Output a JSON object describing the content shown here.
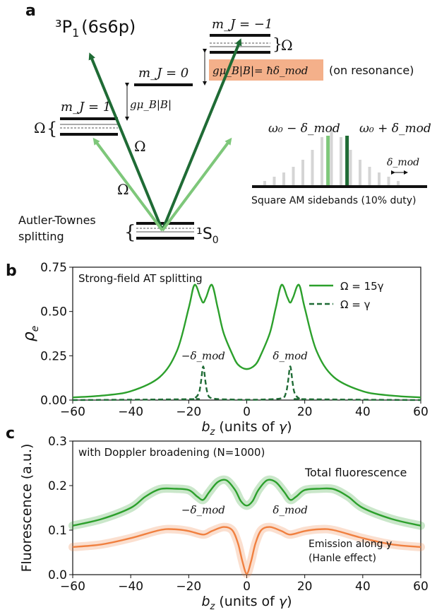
{
  "panel_labels": {
    "a": "a",
    "b": "b",
    "c": "c"
  },
  "diagram": {
    "state_3p1": "³P",
    "state_3p1_sub": "1",
    "state_3p1_config": "(6s6p)",
    "state_1s0": "¹S",
    "state_1s0_sub": "0",
    "mj_plus1": "m_J = 1",
    "mj_0": "m_J = 0",
    "mj_minus1": "m_J = −1",
    "zeeman_label": "gμ_B|B|",
    "omega": "Ω",
    "resonance_eq": "gμ_B|B|= ħδ_mod",
    "resonance_note": "(on resonance)",
    "autler_townes_line1": "Autler-Townes",
    "autler_townes_line2": "splitting",
    "sideband_left": "ω₀ − δ_mod",
    "sideband_right": "ω₀ + δ_mod",
    "sideband_spacing": "δ_mod",
    "sideband_caption": "Square AM sidebands (10% duty)",
    "colors": {
      "dark_green": "#1f6b35",
      "light_green": "#7ec77a",
      "highlight": "#f4b08a",
      "orange": "#f08040"
    }
  },
  "chart_data": [
    {
      "type": "line",
      "panel": "b",
      "annotation": "Strong-field AT splitting",
      "xlabel": "b_z (units of γ)",
      "ylabel": "ρ_e",
      "xlim": [
        -60,
        60
      ],
      "ylim": [
        0,
        0.75
      ],
      "xticks": [
        "−60",
        "−40",
        "−20",
        "0",
        "20",
        "40",
        "60"
      ],
      "yticks": [
        "0.00",
        "0.25",
        "0.50",
        "0.75"
      ],
      "legend": "top-right",
      "peak_labels": [
        "−δ_mod",
        "δ_mod"
      ],
      "series": [
        {
          "name": "Ω = 15γ",
          "style": "solid",
          "color": "#2ca02c",
          "x": [
            -60,
            -50,
            -40,
            -30,
            -24,
            -20,
            -18,
            -16,
            -15,
            -14,
            -12,
            -10,
            -8,
            -5,
            -3,
            0,
            3,
            5,
            8,
            10,
            12,
            14,
            15,
            16,
            18,
            20,
            24,
            30,
            40,
            50,
            60
          ],
          "y": [
            0.015,
            0.025,
            0.05,
            0.13,
            0.28,
            0.52,
            0.65,
            0.58,
            0.55,
            0.58,
            0.65,
            0.52,
            0.38,
            0.26,
            0.2,
            0.175,
            0.2,
            0.26,
            0.38,
            0.52,
            0.65,
            0.58,
            0.55,
            0.58,
            0.65,
            0.52,
            0.28,
            0.13,
            0.05,
            0.025,
            0.015
          ]
        },
        {
          "name": "Ω = γ",
          "style": "dashed",
          "color": "#1f6b35",
          "x": [
            -60,
            -20,
            -18,
            -16.5,
            -15.8,
            -15,
            -14.2,
            -13.5,
            -12,
            -5,
            0,
            5,
            12,
            13.5,
            14.2,
            15,
            15.8,
            16.5,
            18,
            20,
            60
          ],
          "y": [
            0.0,
            0.005,
            0.01,
            0.04,
            0.1,
            0.19,
            0.1,
            0.04,
            0.01,
            0.003,
            0.002,
            0.003,
            0.01,
            0.04,
            0.1,
            0.19,
            0.1,
            0.04,
            0.01,
            0.005,
            0.0
          ]
        }
      ]
    },
    {
      "type": "line",
      "panel": "c",
      "annotation": "with Doppler broadening (N=1000)",
      "xlabel": "b_z (units of γ)",
      "ylabel": "Fluorescence (a.u.)",
      "xlim": [
        -60,
        60
      ],
      "ylim": [
        0,
        0.3
      ],
      "xticks": [
        "−60",
        "−40",
        "−20",
        "0",
        "20",
        "40",
        "60"
      ],
      "yticks": [
        "0.0",
        "0.1",
        "0.2",
        "0.3"
      ],
      "peak_labels": [
        "−δ_mod",
        "δ_mod"
      ],
      "series": [
        {
          "name": "Total fluorescence",
          "color": "#2ca02c",
          "x": [
            -60,
            -50,
            -40,
            -35,
            -30,
            -25,
            -20,
            -17,
            -15,
            -13,
            -10,
            -7,
            -4,
            -2,
            0,
            2,
            4,
            7,
            10,
            13,
            15,
            17,
            20,
            25,
            30,
            35,
            40,
            50,
            60
          ],
          "y": [
            0.11,
            0.125,
            0.15,
            0.175,
            0.192,
            0.193,
            0.19,
            0.175,
            0.168,
            0.185,
            0.208,
            0.212,
            0.19,
            0.165,
            0.155,
            0.165,
            0.19,
            0.212,
            0.208,
            0.185,
            0.168,
            0.175,
            0.19,
            0.193,
            0.192,
            0.175,
            0.15,
            0.125,
            0.11
          ]
        },
        {
          "name": "Emission along y",
          "sublabel": "(Hanle effect)",
          "color": "#f08040",
          "x": [
            -60,
            -50,
            -40,
            -30,
            -25,
            -20,
            -15,
            -12,
            -8,
            -5,
            -3,
            -1.5,
            0,
            1.5,
            3,
            5,
            8,
            12,
            15,
            20,
            25,
            30,
            40,
            50,
            60
          ],
          "y": [
            0.062,
            0.068,
            0.082,
            0.1,
            0.102,
            0.098,
            0.09,
            0.098,
            0.107,
            0.1,
            0.07,
            0.03,
            0.002,
            0.03,
            0.07,
            0.1,
            0.107,
            0.098,
            0.09,
            0.098,
            0.102,
            0.1,
            0.082,
            0.068,
            0.062
          ]
        }
      ]
    }
  ]
}
